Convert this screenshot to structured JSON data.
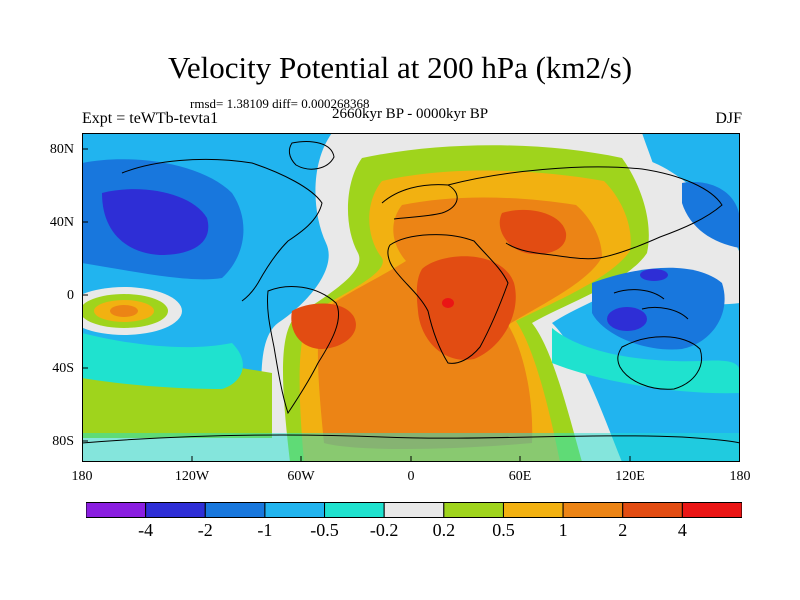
{
  "title": "Velocity Potential at 200 hPa (km2/s)",
  "stats": "rmsd= 1.38109 diff= 0.000268368",
  "period": "2660kyr BP - 0000kyr BP",
  "experiment": "Expt = teWTb-tevta1",
  "season": "DJF",
  "y_axis": {
    "labels": [
      "80N",
      "40N",
      "0",
      "40S",
      "80S"
    ]
  },
  "x_axis": {
    "labels": [
      "180",
      "120W",
      "60W",
      "0",
      "60E",
      "120E",
      "180"
    ]
  },
  "colorbar": {
    "colors": [
      "#8a1ee0",
      "#2e2ed6",
      "#1877dd",
      "#21b4ef",
      "#1fe2cf",
      "#e9e9e9",
      "#9fd41c",
      "#f2b111",
      "#ec8415",
      "#e24c12",
      "#ea1515"
    ],
    "labels": [
      "-4",
      "-2",
      "-1",
      "-0.5",
      "-0.2",
      "0.2",
      "0.5",
      "1",
      "2",
      "4"
    ]
  }
}
